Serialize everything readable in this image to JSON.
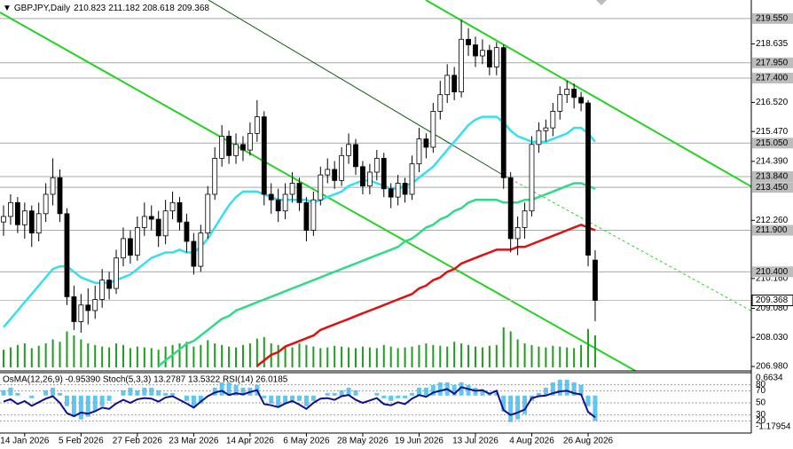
{
  "chart_data": {
    "type": "candlestick",
    "symbol": "GBPJPY,Daily",
    "indicator_text": "OsMA(12,26,9) -0.95390 Stoch(5,3,3) 13.2787 13.5322 RSI(14) 26.0185",
    "categories": [
      null,
      null,
      null,
      "14 Jan 2026",
      null,
      null,
      null,
      null,
      null,
      null,
      null,
      "5 Feb 2026",
      null,
      null,
      null,
      null,
      null,
      null,
      null,
      "27 Feb 2026",
      null,
      null,
      null,
      null,
      null,
      null,
      null,
      "23 Mar 2026",
      null,
      null,
      null,
      null,
      null,
      null,
      null,
      "14 Apr 2026",
      null,
      null,
      null,
      null,
      null,
      null,
      null,
      "6 May 2026",
      null,
      null,
      null,
      null,
      null,
      null,
      null,
      "28 May 2026",
      null,
      null,
      null,
      null,
      null,
      null,
      null,
      "19 Jun 2026",
      null,
      null,
      null,
      null,
      null,
      null,
      null,
      "13 Jul 2026",
      null,
      null,
      null,
      null,
      null,
      null,
      null,
      "4 Aug 2026",
      null,
      null,
      null,
      null,
      null,
      null,
      null,
      "26 Aug 2026",
      null
    ],
    "candles": [
      [
        212.2,
        212.8,
        211.7,
        212.4
      ],
      [
        212.4,
        213.2,
        212.1,
        212.9
      ],
      [
        212.9,
        213.1,
        211.8,
        212.1
      ],
      [
        212.1,
        212.9,
        211.6,
        212.6
      ],
      [
        212.6,
        212.8,
        211.3,
        211.8
      ],
      [
        211.8,
        212.9,
        211.5,
        212.5
      ],
      [
        212.5,
        213.6,
        212.2,
        213.2
      ],
      [
        213.2,
        214.5,
        212.8,
        213.8
      ],
      [
        213.8,
        214.1,
        212.2,
        212.5
      ],
      [
        212.5,
        212.7,
        209.2,
        209.5
      ],
      [
        209.5,
        209.9,
        208.3,
        208.6
      ],
      [
        208.6,
        209.6,
        208.2,
        209.2
      ],
      [
        209.2,
        209.8,
        208.5,
        209.0
      ],
      [
        209.0,
        209.9,
        208.7,
        209.4
      ],
      [
        209.4,
        210.5,
        209.1,
        210.1
      ],
      [
        210.1,
        210.4,
        209.4,
        209.8
      ],
      [
        209.8,
        211.2,
        209.6,
        210.9
      ],
      [
        210.9,
        212.0,
        210.6,
        211.6
      ],
      [
        211.6,
        211.9,
        210.7,
        211.0
      ],
      [
        211.0,
        212.4,
        210.8,
        212.0
      ],
      [
        212.0,
        212.9,
        211.7,
        212.4
      ],
      [
        212.4,
        212.8,
        211.9,
        212.3
      ],
      [
        212.3,
        212.6,
        211.3,
        211.7
      ],
      [
        211.7,
        213.0,
        211.4,
        212.6
      ],
      [
        212.6,
        213.3,
        212.3,
        212.9
      ],
      [
        212.9,
        213.1,
        211.9,
        212.2
      ],
      [
        212.2,
        212.5,
        211.1,
        211.5
      ],
      [
        211.5,
        211.8,
        210.3,
        210.6
      ],
      [
        210.6,
        212.1,
        210.4,
        211.8
      ],
      [
        211.8,
        213.5,
        211.6,
        213.2
      ],
      [
        213.2,
        214.9,
        213.0,
        214.5
      ],
      [
        214.5,
        215.7,
        214.2,
        215.3
      ],
      [
        215.3,
        215.5,
        214.3,
        214.6
      ],
      [
        214.6,
        215.4,
        214.3,
        215.0
      ],
      [
        215.0,
        215.3,
        214.4,
        214.8
      ],
      [
        214.8,
        215.8,
        214.6,
        215.4
      ],
      [
        215.4,
        216.6,
        215.1,
        216.0
      ],
      [
        216.0,
        216.2,
        212.8,
        213.2
      ],
      [
        213.2,
        213.6,
        212.5,
        213.0
      ],
      [
        213.0,
        213.4,
        212.2,
        212.6
      ],
      [
        212.6,
        213.6,
        212.3,
        213.2
      ],
      [
        213.2,
        214.0,
        212.9,
        213.6
      ],
      [
        213.6,
        213.8,
        212.6,
        212.9
      ],
      [
        212.9,
        213.1,
        211.5,
        211.9
      ],
      [
        211.9,
        213.3,
        211.7,
        213.0
      ],
      [
        213.0,
        214.2,
        212.8,
        213.9
      ],
      [
        213.9,
        214.5,
        213.6,
        214.1
      ],
      [
        214.1,
        214.4,
        213.4,
        213.7
      ],
      [
        213.7,
        214.9,
        213.5,
        214.6
      ],
      [
        214.6,
        215.4,
        214.3,
        215.0
      ],
      [
        215.0,
        215.2,
        213.9,
        214.2
      ],
      [
        214.2,
        214.4,
        213.2,
        213.5
      ],
      [
        213.5,
        214.3,
        213.2,
        214.0
      ],
      [
        214.0,
        214.8,
        213.7,
        214.5
      ],
      [
        214.5,
        214.7,
        213.1,
        213.4
      ],
      [
        213.4,
        213.6,
        212.7,
        213.1
      ],
      [
        213.1,
        213.9,
        212.8,
        213.6
      ],
      [
        213.6,
        213.8,
        212.9,
        213.2
      ],
      [
        213.2,
        214.6,
        213.0,
        214.3
      ],
      [
        214.3,
        215.6,
        214.0,
        215.2
      ],
      [
        215.2,
        215.4,
        214.5,
        214.9
      ],
      [
        214.9,
        216.5,
        214.7,
        216.2
      ],
      [
        216.2,
        217.3,
        215.9,
        216.8
      ],
      [
        216.8,
        217.9,
        216.5,
        217.5
      ],
      [
        217.5,
        217.8,
        216.6,
        216.9
      ],
      [
        216.9,
        219.5,
        216.7,
        218.8
      ],
      [
        218.8,
        219.2,
        218.2,
        218.6
      ],
      [
        218.6,
        218.9,
        217.8,
        218.2
      ],
      [
        218.2,
        218.8,
        217.9,
        218.4
      ],
      [
        218.4,
        218.6,
        217.5,
        217.8
      ],
      [
        217.8,
        218.7,
        217.5,
        218.5
      ],
      [
        218.5,
        218.6,
        213.4,
        213.8
      ],
      [
        213.8,
        214.0,
        211.1,
        211.6
      ],
      [
        211.6,
        212.4,
        211.0,
        212.0
      ],
      [
        212.0,
        212.9,
        211.6,
        212.6
      ],
      [
        212.6,
        215.3,
        212.4,
        215.0
      ],
      [
        215.0,
        215.8,
        214.7,
        215.5
      ],
      [
        215.5,
        215.9,
        215.1,
        215.6
      ],
      [
        215.6,
        216.5,
        215.3,
        216.2
      ],
      [
        216.2,
        217.1,
        215.9,
        216.8
      ],
      [
        216.8,
        217.3,
        216.5,
        217.0
      ],
      [
        217.0,
        217.2,
        216.3,
        216.7
      ],
      [
        216.7,
        216.9,
        216.2,
        216.5
      ],
      [
        216.5,
        216.6,
        210.6,
        211.0
      ],
      [
        210.823,
        211.182,
        208.618,
        209.368
      ]
    ],
    "moving_averages": [
      {
        "color": "#33e0f0",
        "values": [
          208.4,
          208.7,
          209.0,
          209.3,
          209.6,
          209.9,
          210.2,
          210.5,
          210.6,
          210.6,
          210.4,
          210.2,
          210.1,
          210.0,
          210.0,
          210.0,
          210.1,
          210.2,
          210.3,
          210.5,
          210.7,
          210.9,
          211.0,
          211.1,
          211.1,
          211.2,
          211.1,
          211.1,
          211.3,
          211.6,
          212.0,
          212.4,
          212.8,
          213.1,
          213.3,
          213.3,
          213.3,
          213.2,
          213.1,
          213.0,
          213.0,
          213.0,
          213.0,
          213.0,
          212.9,
          213.0,
          213.1,
          213.2,
          213.3,
          213.5,
          213.6,
          213.7,
          213.7,
          213.6,
          213.5,
          213.4,
          213.4,
          213.5,
          213.6,
          213.8,
          214.0,
          214.2,
          214.5,
          214.8,
          215.1,
          215.4,
          215.7,
          215.9,
          216.0,
          216.0,
          216.0,
          215.8,
          215.5,
          215.3,
          215.2,
          215.1,
          215.1,
          215.1,
          215.2,
          215.3,
          215.4,
          215.6,
          215.6,
          215.4,
          215.1
        ]
      },
      {
        "color": "#2edc88",
        "values": [
          null,
          null,
          null,
          null,
          null,
          null,
          null,
          null,
          null,
          null,
          null,
          null,
          null,
          null,
          null,
          null,
          null,
          null,
          null,
          null,
          null,
          null,
          207.0,
          207.2,
          207.4,
          207.6,
          207.8,
          207.9,
          208.1,
          208.3,
          208.5,
          208.7,
          208.8,
          209.0,
          209.1,
          209.2,
          209.3,
          209.4,
          209.5,
          209.6,
          209.7,
          209.8,
          209.9,
          210.0,
          210.1,
          210.2,
          210.3,
          210.4,
          210.5,
          210.6,
          210.7,
          210.8,
          210.9,
          211.0,
          211.1,
          211.2,
          211.3,
          211.5,
          211.6,
          211.8,
          212.0,
          212.1,
          212.3,
          212.4,
          212.6,
          212.7,
          212.9,
          213.0,
          213.0,
          213.0,
          213.0,
          212.9,
          212.9,
          212.9,
          213.0,
          213.0,
          213.1,
          213.2,
          213.3,
          213.4,
          213.5,
          213.6,
          213.6,
          213.5,
          213.4
        ]
      },
      {
        "color": "#e01010",
        "values": [
          null,
          null,
          null,
          null,
          null,
          null,
          null,
          null,
          null,
          null,
          null,
          null,
          null,
          null,
          null,
          null,
          null,
          null,
          null,
          null,
          null,
          null,
          null,
          null,
          null,
          null,
          null,
          null,
          null,
          null,
          null,
          null,
          null,
          null,
          null,
          null,
          207.0,
          207.2,
          207.4,
          207.5,
          207.7,
          207.8,
          207.9,
          208.0,
          208.1,
          208.3,
          208.4,
          208.5,
          208.6,
          208.7,
          208.8,
          208.9,
          209.0,
          209.1,
          209.2,
          209.3,
          209.4,
          209.5,
          209.6,
          209.8,
          209.9,
          210.1,
          210.2,
          210.4,
          210.5,
          210.7,
          210.8,
          210.9,
          211.0,
          211.1,
          211.2,
          211.2,
          211.2,
          211.3,
          211.3,
          211.4,
          211.5,
          211.6,
          211.7,
          211.8,
          211.9,
          212.0,
          212.1,
          212.0,
          211.9
        ]
      }
    ],
    "volumes": [
      22,
      25,
      28,
      30,
      24,
      27,
      30,
      35,
      32,
      45,
      40,
      35,
      30,
      28,
      26,
      25,
      30,
      28,
      24,
      26,
      25,
      24,
      22,
      26,
      28,
      30,
      32,
      26,
      28,
      34,
      30,
      28,
      26,
      25,
      28,
      30,
      36,
      38,
      30,
      28,
      26,
      25,
      30,
      28,
      26,
      24,
      25,
      27,
      26,
      25,
      24,
      26,
      25,
      24,
      28,
      26,
      24,
      25,
      26,
      28,
      30,
      28,
      27,
      26,
      32,
      30,
      28,
      26,
      25,
      27,
      28,
      50,
      45,
      35,
      30,
      28,
      26,
      25,
      27,
      26,
      25,
      24,
      28,
      48,
      40
    ],
    "volume_color": "#1e9e1e",
    "ylim": [
      206.82,
      220.22
    ],
    "yticks": [
      218.635,
      {
        "value": 216.52,
        "label": "216.520"
      },
      {
        "value": 215.47,
        "label": "215.470"
      },
      {
        "value": 214.39,
        "label": "214.390"
      },
      {
        "value": 212.26,
        "label": "212.260"
      },
      {
        "value": 210.16,
        "label": "210.160"
      },
      {
        "value": 209.08,
        "label": "209.080"
      },
      {
        "value": 208.03,
        "label": "208.030"
      },
      {
        "value": 206.98,
        "label": "206.980"
      }
    ],
    "levels": [
      {
        "value": 219.55,
        "label": "219.550"
      },
      {
        "value": 217.95,
        "label": "217.950"
      },
      {
        "value": 217.4,
        "label": "217.400"
      },
      {
        "value": 215.05,
        "label": "215.050"
      },
      {
        "value": 213.84,
        "label": "213.840"
      },
      {
        "value": 213.45,
        "label": "213.450"
      },
      {
        "value": 211.9,
        "label": "211.900"
      },
      {
        "value": 210.4,
        "label": "210.400"
      }
    ],
    "osma": {
      "color": "#5cc8f5",
      "values": [
        0.2,
        0.3,
        0.1,
        0.0,
        -0.1,
        0.0,
        0.2,
        0.3,
        0.1,
        -0.4,
        -0.8,
        -0.9,
        -0.8,
        -0.6,
        -0.4,
        -0.2,
        0.0,
        0.2,
        0.3,
        0.2,
        0.3,
        0.3,
        0.2,
        0.1,
        0.1,
        0.0,
        -0.2,
        -0.4,
        -0.3,
        0.0,
        0.3,
        0.5,
        0.5,
        0.4,
        0.3,
        0.3,
        0.4,
        -0.1,
        -0.3,
        -0.4,
        -0.3,
        -0.2,
        -0.2,
        -0.4,
        -0.2,
        0.0,
        0.1,
        0.1,
        0.2,
        0.3,
        0.2,
        0.0,
        0.0,
        0.1,
        -0.1,
        -0.2,
        -0.1,
        -0.1,
        0.1,
        0.3,
        0.3,
        0.4,
        0.5,
        0.5,
        0.4,
        0.5,
        0.4,
        0.3,
        0.2,
        0.1,
        0.1,
        -0.6,
        -1.0,
        -0.9,
        -0.7,
        -0.2,
        0.1,
        0.3,
        0.5,
        0.6,
        0.6,
        0.5,
        0.4,
        -0.4,
        -0.9539
      ],
      "ylim": [
        -1.4141,
        0.8645
      ],
      "yticks": [
        0.6634,
        -1.17954
      ]
    },
    "rsi": {
      "color": "#10108c",
      "values": [
        52,
        56,
        48,
        53,
        45,
        51,
        57,
        61,
        50,
        33,
        28,
        34,
        32,
        36,
        42,
        40,
        49,
        55,
        50,
        56,
        58,
        57,
        52,
        59,
        61,
        55,
        49,
        42,
        52,
        61,
        67,
        70,
        63,
        66,
        64,
        68,
        71,
        48,
        46,
        43,
        49,
        53,
        47,
        40,
        50,
        57,
        58,
        55,
        61,
        63,
        55,
        50,
        54,
        58,
        48,
        46,
        51,
        48,
        57,
        63,
        60,
        67,
        70,
        73,
        65,
        76,
        73,
        70,
        71,
        65,
        70,
        38,
        30,
        34,
        39,
        58,
        61,
        62,
        66,
        69,
        70,
        66,
        64,
        35,
        26.0185
      ],
      "ylim": [
        0,
        100
      ],
      "yticks": [
        80,
        70,
        50,
        30,
        20
      ]
    }
  }
}
